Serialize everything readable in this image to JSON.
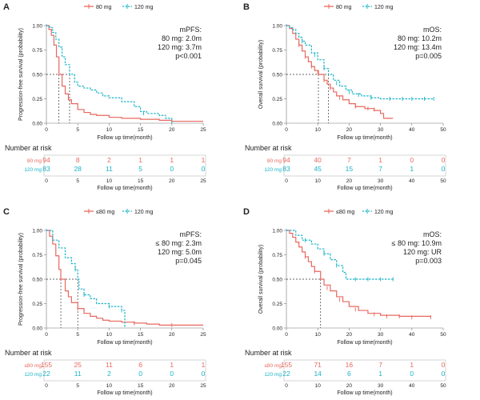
{
  "colors": {
    "red": "#e8685f",
    "blue": "#1ab3c8",
    "axis": "#777777",
    "text": "#222222"
  },
  "panels": [
    {
      "letter": "A",
      "legend": [
        "80 mg",
        "120 mg"
      ],
      "ylabel": "Progression-free survival (probability)",
      "xlabel": "Follow up time(month)",
      "annot": [
        "mPFS:",
        "80 mg: 2.0m",
        "120 mg: 3.7m",
        "p<0.001"
      ],
      "xmax": 25,
      "xticks": [
        0,
        5,
        10,
        15,
        20,
        25
      ],
      "yticks": [
        0.0,
        0.25,
        0.5,
        0.75,
        1.0
      ],
      "medians": [
        2.0,
        3.7
      ],
      "risk_title": "Number at risk",
      "risk_labels": [
        "80 mg",
        "120 mg"
      ],
      "risk": [
        [
          94,
          8,
          2,
          1,
          1,
          1
        ],
        [
          83,
          28,
          11,
          5,
          0,
          0
        ]
      ],
      "series": [
        {
          "name": "80 mg",
          "pts": [
            [
              0,
              1.0
            ],
            [
              0.4,
              0.96
            ],
            [
              0.8,
              0.9
            ],
            [
              1.2,
              0.8
            ],
            [
              1.6,
              0.68
            ],
            [
              2.0,
              0.5
            ],
            [
              2.5,
              0.38
            ],
            [
              3,
              0.3
            ],
            [
              3.5,
              0.24
            ],
            [
              4,
              0.2
            ],
            [
              5,
              0.14
            ],
            [
              6,
              0.11
            ],
            [
              7,
              0.09
            ],
            [
              8,
              0.08
            ],
            [
              10,
              0.06
            ],
            [
              12,
              0.05
            ],
            [
              15,
              0.04
            ],
            [
              18,
              0.03
            ],
            [
              20,
              0.02
            ],
            [
              25,
              0.02
            ]
          ]
        },
        {
          "name": "120 mg",
          "pts": [
            [
              0,
              1.0
            ],
            [
              0.5,
              0.98
            ],
            [
              1,
              0.93
            ],
            [
              1.5,
              0.86
            ],
            [
              2,
              0.78
            ],
            [
              2.5,
              0.68
            ],
            [
              3,
              0.6
            ],
            [
              3.7,
              0.5
            ],
            [
              4.5,
              0.42
            ],
            [
              5,
              0.38
            ],
            [
              6,
              0.36
            ],
            [
              7,
              0.34
            ],
            [
              8,
              0.31
            ],
            [
              9,
              0.28
            ],
            [
              10,
              0.26
            ],
            [
              12,
              0.22
            ],
            [
              14,
              0.17
            ],
            [
              15,
              0.12
            ],
            [
              16,
              0.1
            ],
            [
              18,
              0.08
            ],
            [
              19,
              0.05
            ],
            [
              20,
              0.0
            ]
          ]
        }
      ],
      "censors": [
        [],
        [
          [
            15.5,
            0.1
          ]
        ]
      ]
    },
    {
      "letter": "B",
      "legend": [
        "80 mg",
        "120 mg"
      ],
      "ylabel": "Overall survival (probability)",
      "xlabel": "Follow up time(month)",
      "annot": [
        "mOS:",
        "80 mg: 10.2m",
        "120 mg: 13.4m",
        "p=0.005"
      ],
      "xmax": 50,
      "xticks": [
        0,
        10,
        20,
        30,
        40,
        50
      ],
      "yticks": [
        0.0,
        0.25,
        0.5,
        0.75,
        1.0
      ],
      "medians": [
        10.2,
        13.4
      ],
      "risk_title": "Number at risk",
      "risk_labels": [
        "80 mg",
        "120 mg"
      ],
      "risk": [
        [
          94,
          40,
          7,
          1,
          0,
          0
        ],
        [
          83,
          45,
          15,
          7,
          1,
          0
        ]
      ],
      "series": [
        {
          "name": "80 mg",
          "pts": [
            [
              0,
              1.0
            ],
            [
              1,
              0.97
            ],
            [
              2,
              0.92
            ],
            [
              3,
              0.86
            ],
            [
              4,
              0.8
            ],
            [
              5,
              0.74
            ],
            [
              6,
              0.68
            ],
            [
              7,
              0.63
            ],
            [
              8,
              0.58
            ],
            [
              9,
              0.54
            ],
            [
              10.2,
              0.5
            ],
            [
              12,
              0.44
            ],
            [
              13,
              0.4
            ],
            [
              14,
              0.36
            ],
            [
              15,
              0.32
            ],
            [
              16,
              0.28
            ],
            [
              18,
              0.24
            ],
            [
              20,
              0.2
            ],
            [
              22,
              0.17
            ],
            [
              25,
              0.15
            ],
            [
              28,
              0.13
            ],
            [
              30,
              0.1
            ],
            [
              31,
              0.05
            ],
            [
              34,
              0.05
            ]
          ]
        },
        {
          "name": "120 mg",
          "pts": [
            [
              0,
              1.0
            ],
            [
              1,
              0.98
            ],
            [
              2,
              0.96
            ],
            [
              3,
              0.92
            ],
            [
              4,
              0.88
            ],
            [
              5,
              0.84
            ],
            [
              6,
              0.8
            ],
            [
              8,
              0.72
            ],
            [
              10,
              0.65
            ],
            [
              12,
              0.56
            ],
            [
              13.4,
              0.5
            ],
            [
              15,
              0.44
            ],
            [
              17,
              0.38
            ],
            [
              19,
              0.34
            ],
            [
              21,
              0.3
            ],
            [
              24,
              0.28
            ],
            [
              27,
              0.26
            ],
            [
              30,
              0.25
            ],
            [
              47,
              0.25
            ]
          ]
        }
      ],
      "censors": [
        [
          [
            4,
            0.8
          ],
          [
            6,
            0.68
          ],
          [
            8,
            0.58
          ],
          [
            10,
            0.52
          ],
          [
            12,
            0.44
          ],
          [
            14,
            0.36
          ],
          [
            17,
            0.26
          ],
          [
            22,
            0.17
          ],
          [
            26,
            0.15
          ],
          [
            28,
            0.14
          ]
        ],
        [
          [
            5,
            0.84
          ],
          [
            9,
            0.7
          ],
          [
            12,
            0.56
          ],
          [
            16,
            0.41
          ],
          [
            20,
            0.32
          ],
          [
            23,
            0.29
          ],
          [
            27,
            0.26
          ],
          [
            33,
            0.25
          ],
          [
            37,
            0.25
          ],
          [
            40,
            0.25
          ],
          [
            44,
            0.25
          ],
          [
            47,
            0.25
          ]
        ]
      ]
    },
    {
      "letter": "C",
      "legend": [
        "≤80 mg",
        "120 mg"
      ],
      "ylabel": "Progression-free survival (probability)",
      "xlabel": "Follow up time(month)",
      "annot": [
        "mPFS:",
        "≤ 80 mg: 2.3m",
        "120 mg: 5.0m",
        "p=0.045"
      ],
      "xmax": 25,
      "xticks": [
        0,
        5,
        10,
        15,
        20,
        25
      ],
      "yticks": [
        0.0,
        0.25,
        0.5,
        0.75,
        1.0
      ],
      "medians": [
        2.3,
        5.0
      ],
      "risk_title": "Number at risk",
      "risk_labels": [
        "≤80 mg",
        "120 mg"
      ],
      "risk": [
        [
          155,
          25,
          11,
          6,
          1,
          1
        ],
        [
          22,
          11,
          2,
          0,
          0,
          0
        ]
      ],
      "series": [
        {
          "name": "≤80 mg",
          "pts": [
            [
              0,
              1.0
            ],
            [
              0.5,
              0.94
            ],
            [
              1,
              0.86
            ],
            [
              1.5,
              0.74
            ],
            [
              2,
              0.6
            ],
            [
              2.3,
              0.5
            ],
            [
              3,
              0.38
            ],
            [
              3.5,
              0.32
            ],
            [
              4,
              0.26
            ],
            [
              5,
              0.2
            ],
            [
              6,
              0.15
            ],
            [
              7,
              0.12
            ],
            [
              8,
              0.1
            ],
            [
              9,
              0.08
            ],
            [
              10,
              0.07
            ],
            [
              12,
              0.06
            ],
            [
              14,
              0.05
            ],
            [
              16,
              0.04
            ],
            [
              18,
              0.03
            ],
            [
              25,
              0.03
            ]
          ]
        },
        {
          "name": "120 mg",
          "pts": [
            [
              0,
              1.0
            ],
            [
              1,
              0.9
            ],
            [
              2,
              0.82
            ],
            [
              3,
              0.72
            ],
            [
              4,
              0.66
            ],
            [
              4.6,
              0.6
            ],
            [
              5.0,
              0.5
            ],
            [
              5.2,
              0.4
            ],
            [
              6,
              0.34
            ],
            [
              7,
              0.3
            ],
            [
              8,
              0.25
            ],
            [
              10,
              0.22
            ],
            [
              12,
              0.18
            ],
            [
              12.5,
              0.0
            ]
          ]
        }
      ],
      "censors": [
        [
          [
            2.3,
            0.5
          ],
          [
            5,
            0.2
          ],
          [
            14,
            0.05
          ],
          [
            20,
            0.03
          ]
        ],
        [
          [
            4.6,
            0.6
          ],
          [
            6,
            0.34
          ],
          [
            10,
            0.22
          ],
          [
            12,
            0.18
          ]
        ]
      ]
    },
    {
      "letter": "D",
      "legend": [
        "≤80 mg",
        "120 mg"
      ],
      "ylabel": "Overall survival (probability)",
      "xlabel": "Follow up time(month)",
      "annot": [
        "mOS:",
        "≤ 80 mg: 10.9m",
        "120 mg: UR",
        "p=0.003"
      ],
      "xmax": 50,
      "xticks": [
        0,
        10,
        20,
        30,
        40,
        50
      ],
      "yticks": [
        0.0,
        0.25,
        0.5,
        0.75,
        1.0
      ],
      "medians": [
        10.9
      ],
      "risk_title": "Number at risk",
      "risk_labels": [
        "≤80 mg",
        "120 mg"
      ],
      "risk": [
        [
          155,
          71,
          16,
          7,
          1,
          0
        ],
        [
          22,
          14,
          6,
          1,
          0,
          0
        ]
      ],
      "series": [
        {
          "name": "≤80 mg",
          "pts": [
            [
              0,
              1.0
            ],
            [
              1,
              0.97
            ],
            [
              2,
              0.93
            ],
            [
              3,
              0.88
            ],
            [
              4,
              0.83
            ],
            [
              5,
              0.78
            ],
            [
              6,
              0.73
            ],
            [
              7,
              0.68
            ],
            [
              8,
              0.63
            ],
            [
              9,
              0.58
            ],
            [
              10.9,
              0.5
            ],
            [
              12,
              0.44
            ],
            [
              14,
              0.38
            ],
            [
              16,
              0.32
            ],
            [
              18,
              0.27
            ],
            [
              20,
              0.22
            ],
            [
              23,
              0.18
            ],
            [
              26,
              0.15
            ],
            [
              30,
              0.13
            ],
            [
              36,
              0.12
            ],
            [
              46,
              0.11
            ]
          ]
        },
        {
          "name": "120 mg",
          "pts": [
            [
              0,
              1.0
            ],
            [
              3,
              0.95
            ],
            [
              5,
              0.9
            ],
            [
              8,
              0.86
            ],
            [
              10,
              0.81
            ],
            [
              12,
              0.76
            ],
            [
              14,
              0.7
            ],
            [
              16,
              0.64
            ],
            [
              18,
              0.57
            ],
            [
              19,
              0.5
            ],
            [
              34,
              0.5
            ]
          ]
        }
      ],
      "censors": [
        [
          [
            6,
            0.73
          ],
          [
            9,
            0.58
          ],
          [
            13,
            0.41
          ],
          [
            17,
            0.29
          ],
          [
            22,
            0.19
          ],
          [
            28,
            0.14
          ],
          [
            32,
            0.12
          ],
          [
            36,
            0.12
          ],
          [
            40,
            0.11
          ],
          [
            46,
            0.11
          ]
        ],
        [
          [
            6,
            0.9
          ],
          [
            12,
            0.76
          ],
          [
            16,
            0.64
          ],
          [
            22,
            0.5
          ],
          [
            26,
            0.5
          ],
          [
            30,
            0.5
          ],
          [
            34,
            0.5
          ]
        ]
      ]
    }
  ]
}
